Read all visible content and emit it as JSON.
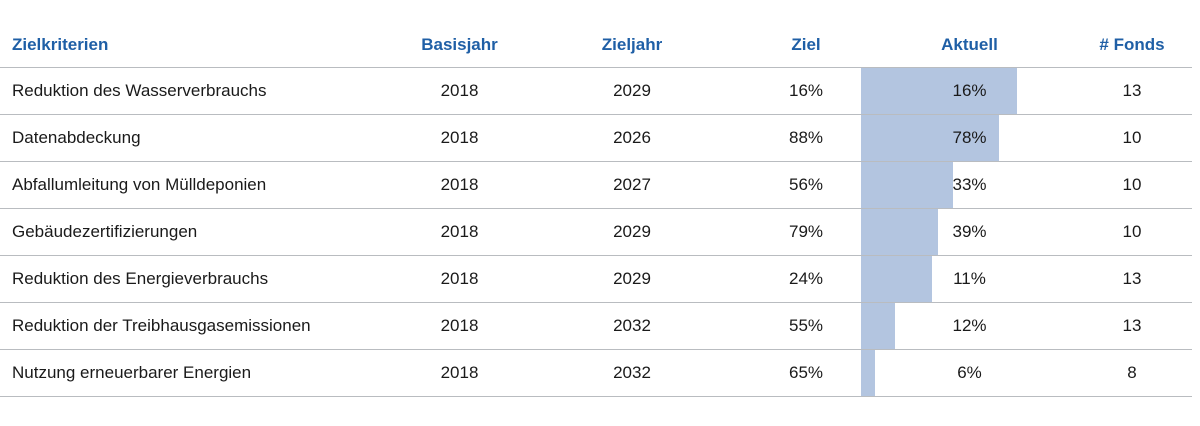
{
  "colors": {
    "header_text": "#1f5fa6",
    "bar_fill": "#b3c5e0",
    "rule": "#b9bcc0"
  },
  "columns": {
    "name": "Zielkriterien",
    "base_year": "Basisjahr",
    "target_year": "Zieljahr",
    "goal": "Ziel",
    "current": "Aktuell",
    "funds": "# Fonds"
  },
  "chart_data": {
    "type": "table",
    "rows": [
      {
        "name": "Reduktion des Wasserverbrauchs",
        "base_year": "2018",
        "target_year": "2029",
        "goal": "16%",
        "current": "16%",
        "funds": "13",
        "progress": 1.0
      },
      {
        "name": "Datenabdeckung",
        "base_year": "2018",
        "target_year": "2026",
        "goal": "88%",
        "current": "78%",
        "funds": "10",
        "progress": 0.886
      },
      {
        "name": "Abfallumleitung von Mülldeponien",
        "base_year": "2018",
        "target_year": "2027",
        "goal": "56%",
        "current": "33%",
        "funds": "10",
        "progress": 0.589
      },
      {
        "name": "Gebäudezertifizierungen",
        "base_year": "2018",
        "target_year": "2029",
        "goal": "79%",
        "current": "39%",
        "funds": "10",
        "progress": 0.494
      },
      {
        "name": "Reduktion des Energieverbrauchs",
        "base_year": "2018",
        "target_year": "2029",
        "goal": "24%",
        "current": "11%",
        "funds": "13",
        "progress": 0.458
      },
      {
        "name": "Reduktion der Treibhausgasemissionen",
        "base_year": "2018",
        "target_year": "2032",
        "goal": "55%",
        "current": "12%",
        "funds": "13",
        "progress": 0.218
      },
      {
        "name": "Nutzung erneuerbarer Energien",
        "base_year": "2018",
        "target_year": "2032",
        "goal": "65%",
        "current": "6%",
        "funds": "8",
        "progress": 0.092
      }
    ]
  }
}
